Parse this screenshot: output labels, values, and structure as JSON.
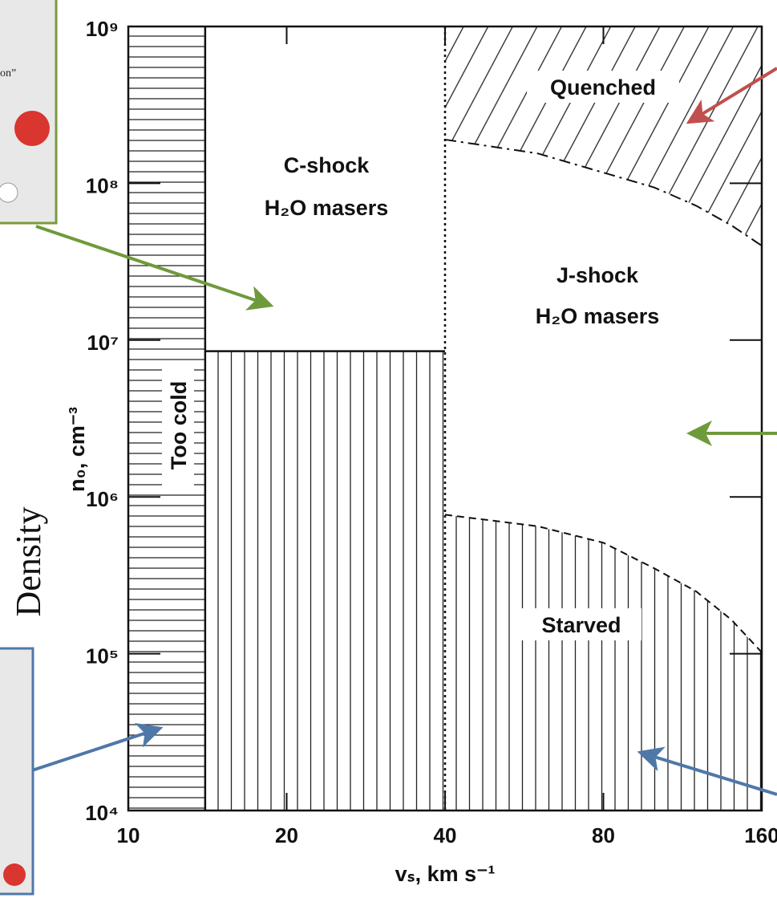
{
  "chart_data": {
    "type": "region",
    "xlabel": "vₛ, km s⁻¹",
    "ylabel": "n₀, cm⁻³",
    "side_label": "Density",
    "inset_text": "on”",
    "xscale": "log",
    "yscale": "log",
    "xlim": [
      10,
      160
    ],
    "ylim": [
      10000,
      1000000000
    ],
    "xticks": [
      10,
      20,
      40,
      80,
      160
    ],
    "yticks": [
      {
        "value": 10000,
        "label": "10⁴"
      },
      {
        "value": 100000,
        "label": "10⁵"
      },
      {
        "value": 1000000,
        "label": "10⁶"
      },
      {
        "value": 10000000,
        "label": "10⁷"
      },
      {
        "value": 100000000,
        "label": "10⁸"
      },
      {
        "value": 1000000000,
        "label": "10⁹"
      }
    ],
    "too_cold_max_velocity": 14,
    "c_shock_min_density": 8500000,
    "j_shock_min_velocity": 40,
    "quench_curve": {
      "x": [
        40,
        60,
        80,
        100,
        120,
        140,
        160
      ],
      "y": [
        190000000,
        155000000,
        117000000,
        94000000,
        72000000,
        54000000,
        40000000
      ]
    },
    "starve_curve": {
      "x": [
        40,
        60,
        80,
        100,
        120,
        140,
        160
      ],
      "y": [
        770000,
        650000,
        510000,
        350000,
        250000,
        165000,
        102000
      ]
    },
    "regions": {
      "quenched": "Quenched",
      "c_shock": [
        "C-shock",
        "H₂O masers"
      ],
      "j_shock": [
        "J-shock",
        "H₂O masers"
      ],
      "starved": "Starved",
      "too_cold": "Too cold"
    }
  }
}
